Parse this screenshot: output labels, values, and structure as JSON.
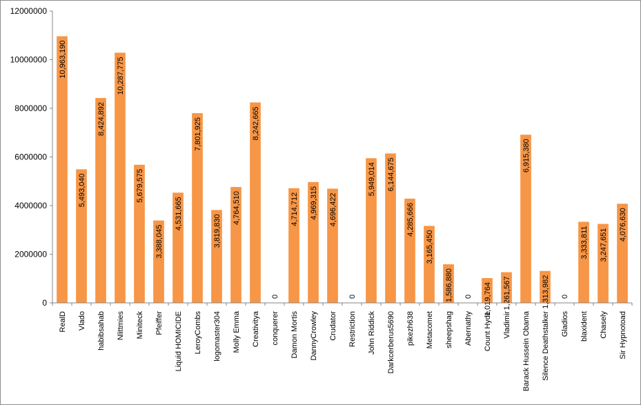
{
  "chart_data": {
    "type": "bar",
    "title": "",
    "xlabel": "",
    "ylabel": "",
    "ylim": [
      0,
      12000000
    ],
    "yticks": [
      "0",
      "2000000",
      "4000000",
      "6000000",
      "8000000",
      "10000000",
      "12000000"
    ],
    "grid": false,
    "legend": "none",
    "bar_color": "#F79646",
    "categories": [
      "RealD",
      "Vlado",
      "habibsahab",
      "Nlittmies",
      "Miniteck",
      "Pfeiffer",
      "Liquid HOMICIDE",
      "LeroyCombs",
      "logomaster304",
      "Molly Emma",
      "Creativitya",
      "conquerer",
      "Damon Mortis",
      "DannyCrowley",
      "Crudator",
      "Restriction",
      "John Riddick",
      "Darkcerberus5690",
      "pikezh638",
      "Metacomet",
      "sheepshag",
      "Abernathy",
      "Count Hyde",
      "Vladimir",
      "Barack Hussein Obama",
      "Silence Deathstalker",
      "Gladios",
      "blaxident",
      "Chasely",
      "Sir Hypnotoad"
    ],
    "values": [
      10963190,
      5493040,
      8424892,
      10287775,
      5679575,
      3388045,
      4531665,
      7801925,
      3819830,
      4764510,
      8242665,
      0,
      4714712,
      4969315,
      4696422,
      0,
      5949014,
      6144675,
      4285666,
      3165450,
      1586880,
      0,
      1019764,
      1261567,
      6915380,
      1313982,
      0,
      3333811,
      3247651,
      4076630
    ],
    "value_labels": [
      "10,963,190",
      "5,493,040",
      "8,424,892",
      "10,287,775",
      "5,679,575",
      "3,388,045",
      "4,531,665",
      "7,801,925",
      "3,819,830",
      "4,764,510",
      "8,242,665",
      "0",
      "4,714,712",
      "4,969,315",
      "4,696,422",
      "0",
      "5,949,014",
      "6,144,675",
      "4,285,666",
      "3,165,450",
      "1,586,880",
      "0",
      "1,019,764",
      "1,261,567",
      "6,915,380",
      "1,313,982",
      "0",
      "3,333,811",
      "3,247,651",
      "4,076,630"
    ]
  }
}
